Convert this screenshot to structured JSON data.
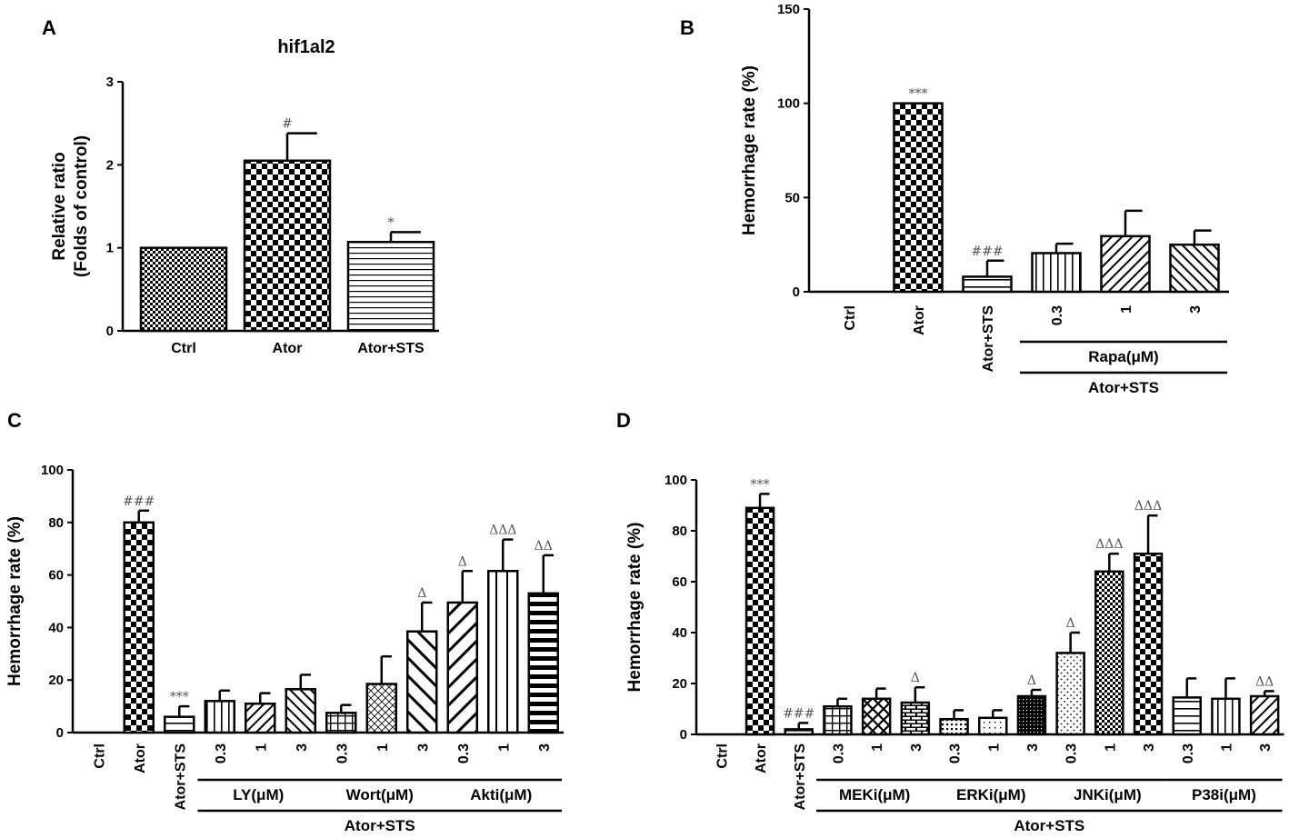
{
  "colors": {
    "ink": "#000000",
    "sig": "#555555"
  },
  "chart_data": [
    {
      "panel": "A",
      "type": "bar",
      "title": "hif1al2",
      "ylabel": "Relative ratio\n(Folds of control)",
      "ylabel_lines": [
        "Relative ratio",
        "(Folds of control)"
      ],
      "xlabel": "",
      "ylim": [
        0,
        3
      ],
      "yticks": [
        "0",
        "1",
        "2",
        "3"
      ],
      "categories": [
        "Ctrl",
        "Ator",
        "Ator+STS"
      ],
      "values": [
        1.0,
        2.05,
        1.07
      ],
      "errors": [
        0,
        0.33,
        0.12
      ],
      "patterns": [
        "fine-check",
        "check",
        "hstripe-thin"
      ],
      "annotations": [
        "",
        "#",
        "*"
      ],
      "groups": []
    },
    {
      "panel": "B",
      "type": "bar",
      "title": "",
      "ylabel": "Hemorrhage rate (%)",
      "xlabel": "",
      "ylim": [
        0,
        150
      ],
      "yticks": [
        "0",
        "50",
        "100",
        "150"
      ],
      "categories": [
        "Ctrl",
        "Ator",
        "Ator+STS",
        "0.3",
        "1",
        "3"
      ],
      "values": [
        0,
        100,
        8,
        20.5,
        29.5,
        25
      ],
      "errors": [
        0,
        0,
        8.5,
        5,
        13.5,
        7.5
      ],
      "patterns": [
        "none",
        "check",
        "hstripe",
        "vstripe",
        "diag-right",
        "diag-left"
      ],
      "annotations": [
        "",
        "***",
        "###",
        "",
        "",
        ""
      ],
      "groups": [
        {
          "label": "Rapa(μM)",
          "from": 3,
          "to": 5,
          "level": 1
        },
        {
          "label": "Ator+STS",
          "from": 3,
          "to": 5,
          "level": 2
        }
      ]
    },
    {
      "panel": "C",
      "type": "bar",
      "title": "",
      "ylabel": "Hemorrhage rate (%)",
      "xlabel": "",
      "ylim": [
        0,
        100
      ],
      "yticks": [
        "0",
        "20",
        "40",
        "60",
        "80",
        "100"
      ],
      "categories": [
        "Ctrl",
        "Ator",
        "Ator+STS",
        "0.3",
        "1",
        "3",
        "0.3",
        "1",
        "3",
        "0.3",
        "1",
        "3"
      ],
      "values": [
        0,
        80,
        6,
        12,
        11,
        16.5,
        7.5,
        18.5,
        38.5,
        49.5,
        61.5,
        53
      ],
      "errors": [
        0,
        4.5,
        4,
        4,
        4,
        5.5,
        3,
        10.5,
        11,
        12,
        12,
        14.5
      ],
      "patterns": [
        "none",
        "check",
        "hstripe",
        "vstripe",
        "diag-right",
        "diag-left",
        "grid",
        "diamond",
        "diag-left-wide",
        "diag-right-wide",
        "vstripe-wide",
        "hstripe-bold"
      ],
      "annotations": [
        "",
        "###",
        "***",
        "",
        "",
        "",
        "",
        "",
        "Δ",
        "Δ",
        "ΔΔΔ",
        "ΔΔ"
      ],
      "groups": [
        {
          "label": "LY(μM)",
          "from": 3,
          "to": 5,
          "level": 1
        },
        {
          "label": "Wort(μM)",
          "from": 6,
          "to": 8,
          "level": 1
        },
        {
          "label": "Akti(μM)",
          "from": 9,
          "to": 11,
          "level": 1
        },
        {
          "label": "Ator+STS",
          "from": 3,
          "to": 11,
          "level": 2
        }
      ]
    },
    {
      "panel": "D",
      "type": "bar",
      "title": "",
      "ylabel": "Hemorrhage rate (%)",
      "xlabel": "",
      "ylim": [
        0,
        100
      ],
      "yticks": [
        "0",
        "20",
        "40",
        "60",
        "80",
        "100"
      ],
      "categories": [
        "Ctrl",
        "Ator",
        "Ator+STS",
        "0.3",
        "1",
        "3",
        "0.3",
        "1",
        "3",
        "0.3",
        "1",
        "3",
        "0.3",
        "1",
        "3"
      ],
      "values": [
        0,
        89,
        2,
        11,
        14,
        12.5,
        6,
        6.5,
        15,
        32,
        64,
        71,
        14.5,
        14,
        15
      ],
      "errors": [
        0,
        5.5,
        2.5,
        3,
        4,
        6,
        3.5,
        3,
        2.5,
        8,
        7,
        15,
        7.5,
        8,
        2
      ],
      "patterns": [
        "none",
        "check",
        "hstripe",
        "grid",
        "cross",
        "brick",
        "dots-dark",
        "dots-light",
        "dense-dark",
        "dots-sparse",
        "fine-check",
        "check",
        "hstripe",
        "vstripe",
        "diag-right"
      ],
      "annotations": [
        "",
        "***",
        "###",
        "",
        "",
        "Δ",
        "",
        "",
        "Δ",
        "Δ",
        "ΔΔΔ",
        "ΔΔΔ",
        "",
        "",
        "ΔΔ"
      ],
      "groups": [
        {
          "label": "MEKi(μM)",
          "from": 3,
          "to": 5,
          "level": 1
        },
        {
          "label": "ERKi(μM)",
          "from": 6,
          "to": 8,
          "level": 1
        },
        {
          "label": "JNKi(μM)",
          "from": 9,
          "to": 11,
          "level": 1
        },
        {
          "label": "P38i(μM)",
          "from": 12,
          "to": 14,
          "level": 1
        },
        {
          "label": "Ator+STS",
          "from": 3,
          "to": 14,
          "level": 2
        }
      ]
    }
  ]
}
